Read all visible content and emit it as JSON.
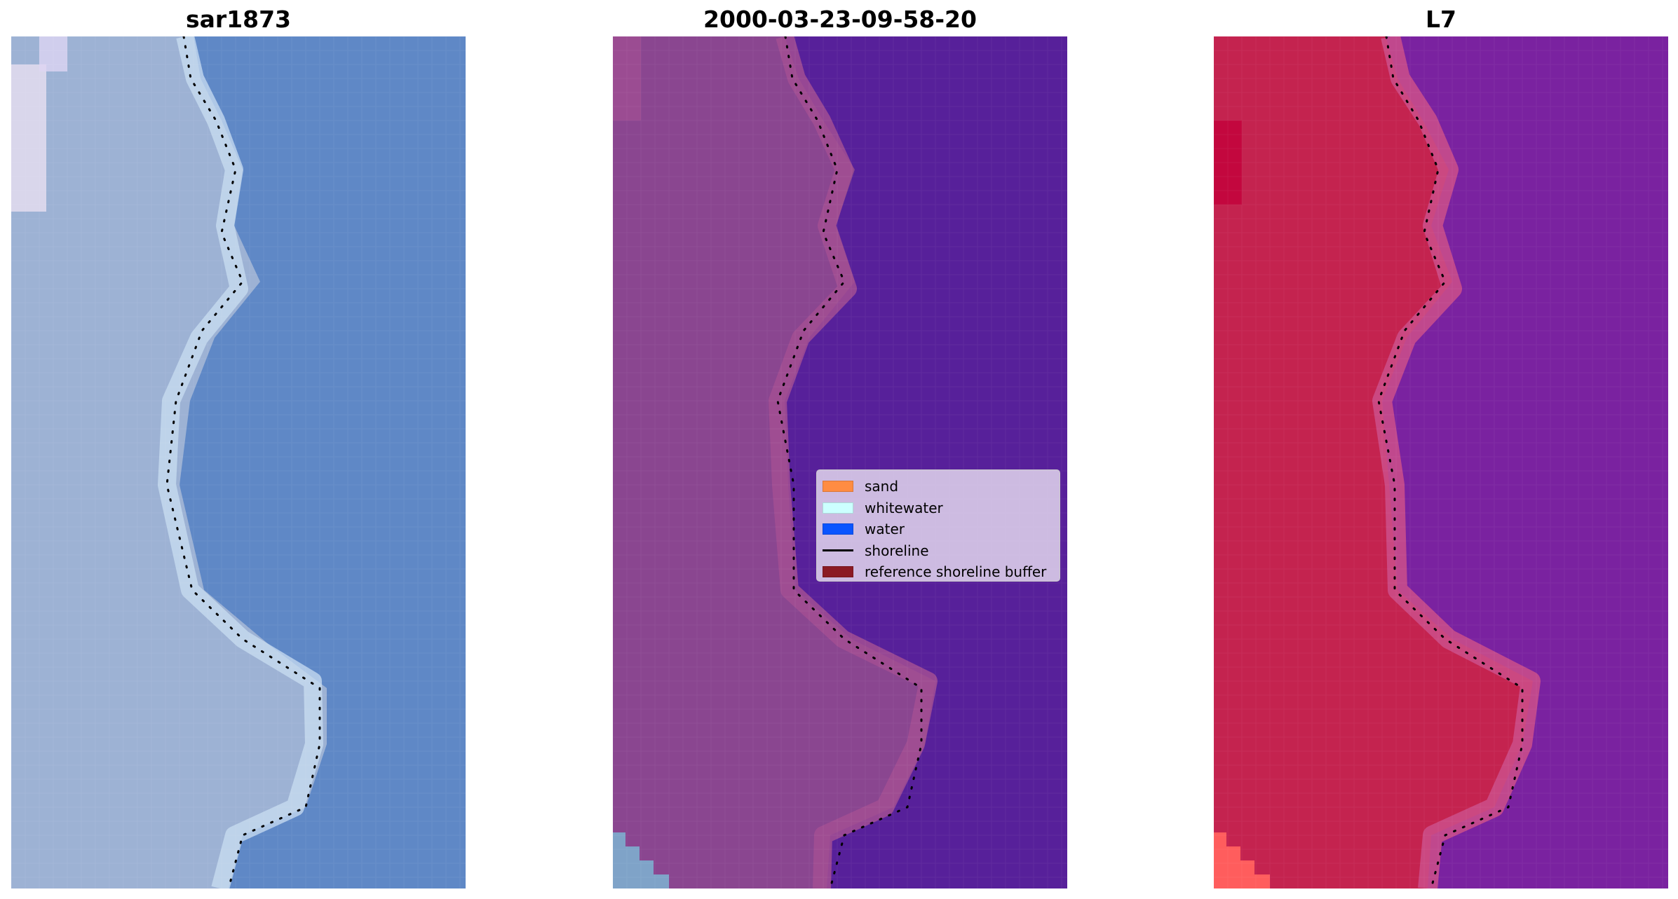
{
  "panels": [
    {
      "title": "sar1873",
      "colors": {
        "land": "#9db2d4",
        "water": "#5f88c6",
        "accent": "#c9def2",
        "highlight": "#e4dcee"
      }
    },
    {
      "title": "2000-03-23-09-58-20",
      "colors": {
        "land": "#8a4690",
        "water": "#57209a",
        "accent": "#a24f93",
        "corner": "#7fa3c8"
      }
    },
    {
      "title": "L7",
      "colors": {
        "land": "#c4234f",
        "water": "#7a22a0",
        "accent": "#cc4f8a",
        "corner": "#ff5d5d"
      }
    }
  ],
  "legend": {
    "items": [
      {
        "label": "sand",
        "color": "#ff8c42",
        "kind": "patch"
      },
      {
        "label": "whitewater",
        "color": "#ccffff",
        "kind": "patch"
      },
      {
        "label": "water",
        "color": "#0a55ff",
        "kind": "patch"
      },
      {
        "label": "shoreline",
        "color": "#000000",
        "kind": "line"
      },
      {
        "label": "reference shoreline buffer",
        "color": "#8b1a24",
        "kind": "patch"
      }
    ]
  }
}
